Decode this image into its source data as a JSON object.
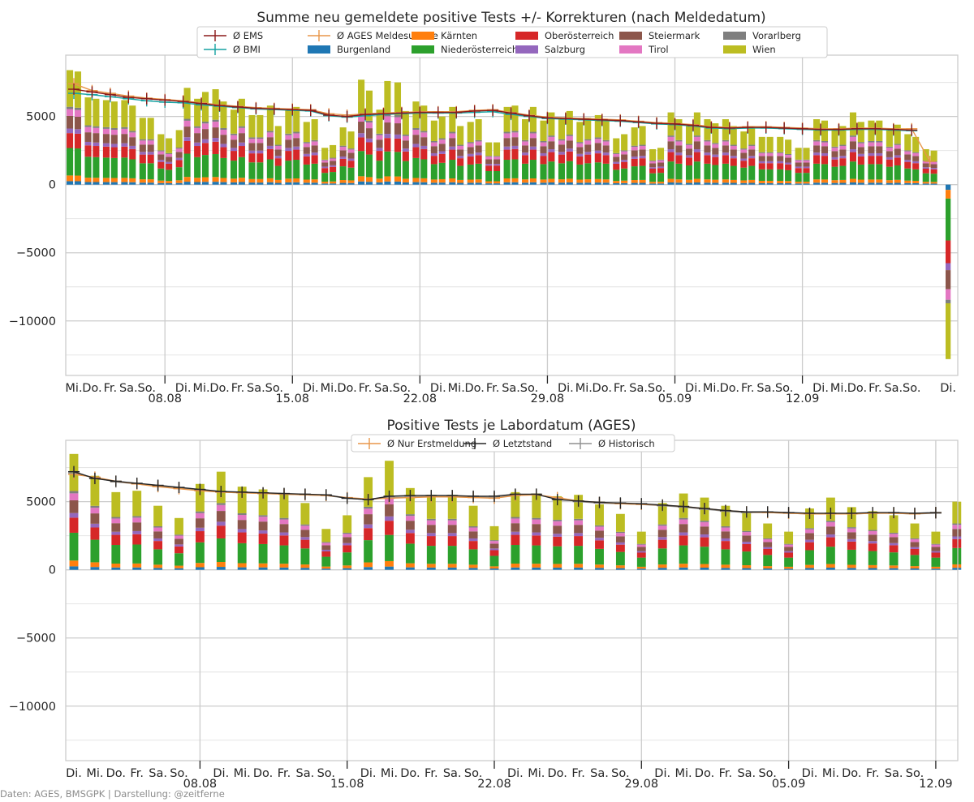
{
  "credit": "Daten: AGES, BMSGPK | Darstellung: @zeitferne",
  "regions": [
    "Burgenland",
    "Kärnten",
    "Niederösterreich",
    "Oberösterreich",
    "Salzburg",
    "Steiermark",
    "Tirol",
    "Vorarlberg",
    "Wien"
  ],
  "colors": {
    "Burgenland": "#1f77b4",
    "Kärnten": "#ff7f0e",
    "Niederösterreich": "#2ca02c",
    "Oberösterreich": "#d62728",
    "Salzburg": "#9467bd",
    "Steiermark": "#8c564b",
    "Tirol": "#e377c2",
    "Vorarlberg": "#7f7f7f",
    "Wien": "#bcbd22",
    "ems": "#8b1a1a",
    "bmi": "#17a2a2",
    "ages": "#e8964a",
    "erst": "#e8964a",
    "letzt": "#262626",
    "hist": "#8f8f8f"
  },
  "region_shares": [
    0.03,
    0.05,
    0.24,
    0.13,
    0.04,
    0.11,
    0.06,
    0.02,
    0.32
  ],
  "chart_data": [
    {
      "type": "bar",
      "stacked": true,
      "title": "Summe neu gemeldete positive Tests +/- Korrekturen (nach Meldedatum)",
      "ylim": [
        -14000,
        9500
      ],
      "yticks": [
        -10000,
        -5000,
        0,
        5000
      ],
      "ytick_labels": [
        "−10000",
        "−5000",
        "0",
        "5000"
      ],
      "grid": true,
      "legend_location": "top-center",
      "legend": [
        {
          "label": "Ø EMS",
          "kind": "line",
          "color": "ems"
        },
        {
          "label": "Ø BMI",
          "kind": "line",
          "color": "bmi"
        },
        {
          "label": "Ø AGES Meldesumme",
          "kind": "line",
          "color": "ages"
        },
        {
          "label": "Burgenland",
          "kind": "patch",
          "color": "Burgenland"
        },
        {
          "label": "Kärnten",
          "kind": "patch",
          "color": "Kärnten"
        },
        {
          "label": "Niederösterreich",
          "kind": "patch",
          "color": "Niederösterreich"
        },
        {
          "label": "Oberösterreich",
          "kind": "patch",
          "color": "Oberösterreich"
        },
        {
          "label": "Salzburg",
          "kind": "patch",
          "color": "Salzburg"
        },
        {
          "label": "Steiermark",
          "kind": "patch",
          "color": "Steiermark"
        },
        {
          "label": "Tirol",
          "kind": "patch",
          "color": "Tirol"
        },
        {
          "label": "Vorarlberg",
          "kind": "patch",
          "color": "Vorarlberg"
        },
        {
          "label": "Wien",
          "kind": "patch",
          "color": "Wien"
        }
      ],
      "x_day_labels": [
        "Mi.",
        "Do.",
        "Fr.",
        "Sa.",
        "So.",
        "Di.",
        "Mi.",
        "Do.",
        "Fr.",
        "Sa.",
        "So.",
        "Di.",
        "Mi.",
        "Do.",
        "Fr.",
        "Sa.",
        "So.",
        "Di.",
        "Mi.",
        "Do.",
        "Fr.",
        "Sa.",
        "So.",
        "Di.",
        "Mi.",
        "Do.",
        "Fr.",
        "Sa.",
        "So.",
        "Di.",
        "Mi.",
        "Do.",
        "Fr.",
        "Sa.",
        "So.",
        "Di.",
        "Mi.",
        "Do.",
        "Fr.",
        "Sa.",
        "So.",
        "Di."
      ],
      "x_day_idx": [
        0,
        1,
        2,
        3,
        4,
        6,
        7,
        8,
        9,
        10,
        11,
        13,
        14,
        15,
        16,
        17,
        18,
        20,
        21,
        22,
        23,
        24,
        25,
        27,
        28,
        29,
        30,
        31,
        32,
        34,
        35,
        36,
        37,
        38,
        39,
        41,
        42,
        43,
        44,
        45,
        46,
        48
      ],
      "x_week_labels": [
        "08.08",
        "15.08",
        "22.08",
        "29.08",
        "05.09",
        "12.09"
      ],
      "x_week_idx": [
        5,
        12,
        19,
        26,
        33,
        40
      ],
      "first_date": "04.08",
      "bar_totals": [
        [
          8400,
          8300,
          6400,
          6300,
          6200,
          6100,
          6200,
          5800,
          4900,
          4900,
          3700,
          3400,
          4000,
          7100,
          6300,
          6800,
          7000,
          6100,
          5500,
          6300,
          5100,
          5100,
          5800,
          4300,
          5500,
          5700,
          4600,
          4800,
          2700,
          2900,
          4200,
          3900,
          7700,
          6900,
          5500,
          7600,
          7500,
          5400,
          6100,
          5800,
          4700,
          5000,
          5700,
          4300,
          4600,
          4800,
          3100,
          3100,
          5700,
          5800,
          4800,
          5700,
          4700,
          5300,
          4900,
          5400,
          4600,
          4900,
          5100,
          4800,
          3400,
          3700,
          4200,
          4300,
          2600,
          2700,
          5300,
          4800,
          4400,
          5300,
          4800,
          4500,
          4800,
          4300,
          3900,
          4300,
          3500,
          3500,
          3500,
          3300,
          2700,
          2700,
          4800,
          4700,
          4100,
          4300,
          5300,
          4600,
          4700,
          4700,
          4100,
          4400,
          3700,
          3500,
          2600,
          2500
        ],
        [
          -12800
        ]
      ],
      "bar_x_positions_note": "bars grouped two per day, last group at 13.09",
      "ems": [
        7000,
        6800,
        6600,
        6400,
        6300,
        6200,
        6100,
        5950,
        5800,
        5700,
        5600,
        5550,
        5500,
        5450,
        5100,
        5000,
        5150,
        5200,
        5250,
        5300,
        5300,
        5300,
        5400,
        5450,
        5250,
        5050,
        4900,
        4850,
        4800,
        4750,
        4700,
        4600,
        4500,
        4450,
        4350,
        4200,
        4150,
        4200,
        4200,
        4150,
        4100,
        4050,
        4050,
        4100,
        4100,
        4050,
        4000
      ],
      "bmi": [
        6700,
        6600,
        6450,
        6300,
        6150,
        6050,
        6000,
        5850,
        5750,
        5650,
        5550,
        5500,
        5450,
        5400,
        5050,
        4950,
        5050,
        5150,
        5200,
        5250,
        5250,
        5250,
        5300,
        5350,
        5150,
        5000,
        4850,
        4800,
        4750,
        4700,
        4650,
        4550,
        4450,
        4400,
        4300,
        4150,
        4100,
        4150,
        4150,
        4100,
        4050,
        4000,
        4000,
        4050,
        4050,
        4000,
        3950
      ],
      "ages": [
        7400,
        6900,
        6700,
        6500,
        6350,
        6250,
        6150,
        6000,
        5850,
        5750,
        5650,
        5600,
        5550,
        5500,
        5200,
        5100,
        5200,
        5250,
        5300,
        5350,
        5350,
        5350,
        5450,
        5500,
        5300,
        5100,
        4950,
        4900,
        4850,
        4800,
        4750,
        4650,
        4550,
        4500,
        4400,
        4250,
        4200,
        4250,
        4250,
        4200,
        4150,
        4100,
        4100,
        4150,
        4150,
        4100,
        4100,
        1700
      ]
    },
    {
      "type": "bar",
      "stacked": true,
      "title": "Positive Tests je Labordatum (AGES)",
      "ylim": [
        -14000,
        9500
      ],
      "yticks": [
        -10000,
        -5000,
        0,
        5000
      ],
      "ytick_labels": [
        "−10000",
        "−5000",
        "0",
        "5000"
      ],
      "grid": true,
      "legend_location": "top-center",
      "legend": [
        {
          "label": "Ø Nur Erstmeldung",
          "kind": "line",
          "color": "erst"
        },
        {
          "label": "Ø Letztstand",
          "kind": "line",
          "color": "letzt"
        },
        {
          "label": "Ø Historisch",
          "kind": "line",
          "color": "hist"
        }
      ],
      "x_day_labels": [
        "Di.",
        "Mi.",
        "Do.",
        "Fr.",
        "Sa.",
        "So.",
        "Di.",
        "Mi.",
        "Do.",
        "Fr.",
        "Sa.",
        "So.",
        "Di.",
        "Mi.",
        "Do.",
        "Fr.",
        "Sa.",
        "So.",
        "Di.",
        "Mi.",
        "Do.",
        "Fr.",
        "Sa.",
        "So.",
        "Di.",
        "Mi.",
        "Do.",
        "Fr.",
        "Sa.",
        "So.",
        "Di.",
        "Mi.",
        "Do.",
        "Fr.",
        "Sa.",
        "So."
      ],
      "x_day_idx": [
        0,
        1,
        2,
        3,
        4,
        5,
        7,
        8,
        9,
        10,
        11,
        12,
        14,
        15,
        16,
        17,
        18,
        19,
        21,
        22,
        23,
        24,
        25,
        26,
        28,
        29,
        30,
        31,
        32,
        33,
        35,
        36,
        37,
        38,
        39,
        40
      ],
      "x_week_labels": [
        "08.08",
        "15.08",
        "22.08",
        "29.08",
        "05.09",
        "12.09"
      ],
      "x_week_idx": [
        6,
        13,
        20,
        27,
        34,
        41
      ],
      "first_date": "03.08",
      "bar_totals": [
        8500,
        6900,
        5700,
        5800,
        4700,
        3800,
        6300,
        7200,
        6100,
        5900,
        5600,
        4900,
        3000,
        4000,
        6800,
        8000,
        6000,
        5500,
        5500,
        4700,
        3200,
        5700,
        5600,
        5400,
        5500,
        4800,
        4100,
        2800,
        4900,
        5600,
        5300,
        4700,
        4200,
        3400,
        2800,
        4500,
        5300,
        4600,
        4300,
        4000,
        3400,
        2800,
        5000
      ],
      "erst": [
        7000,
        6800,
        6500,
        6300,
        6100,
        5950,
        5800,
        5700,
        5650,
        5600,
        5550,
        5500,
        5450,
        5300,
        5200,
        5250,
        5300,
        5350,
        5350,
        5300,
        5250,
        5450,
        5500,
        5300,
        5050,
        4950,
        4850,
        4800,
        4750,
        4650,
        4500,
        4350,
        4250,
        4200,
        4150,
        4100,
        4100,
        4100,
        4150,
        4150,
        4100,
        4200
      ],
      "letzt": [
        7200,
        6700,
        6500,
        6350,
        6200,
        6050,
        5900,
        5750,
        5700,
        5650,
        5600,
        5550,
        5500,
        5250,
        5150,
        5400,
        5450,
        5450,
        5450,
        5400,
        5400,
        5550,
        5550,
        5150,
        5050,
        4950,
        4900,
        4850,
        4750,
        4650,
        4500,
        4350,
        4250,
        4250,
        4200,
        4150,
        4150,
        4150,
        4200,
        4200,
        4150,
        4200
      ],
      "hist": [
        7100,
        6750,
        6450,
        6300,
        6150,
        6000,
        5850,
        5700,
        5650,
        5600,
        5550,
        5500,
        5450,
        5250,
        5150,
        5300,
        5350,
        5400,
        5400,
        5350,
        5300,
        5500,
        5500,
        5250,
        5000,
        4900,
        4850,
        4800,
        4700,
        4600,
        4450,
        4300,
        4200,
        4200,
        4150,
        4100,
        4100,
        4100,
        4150,
        4150,
        4100,
        4150
      ]
    }
  ]
}
